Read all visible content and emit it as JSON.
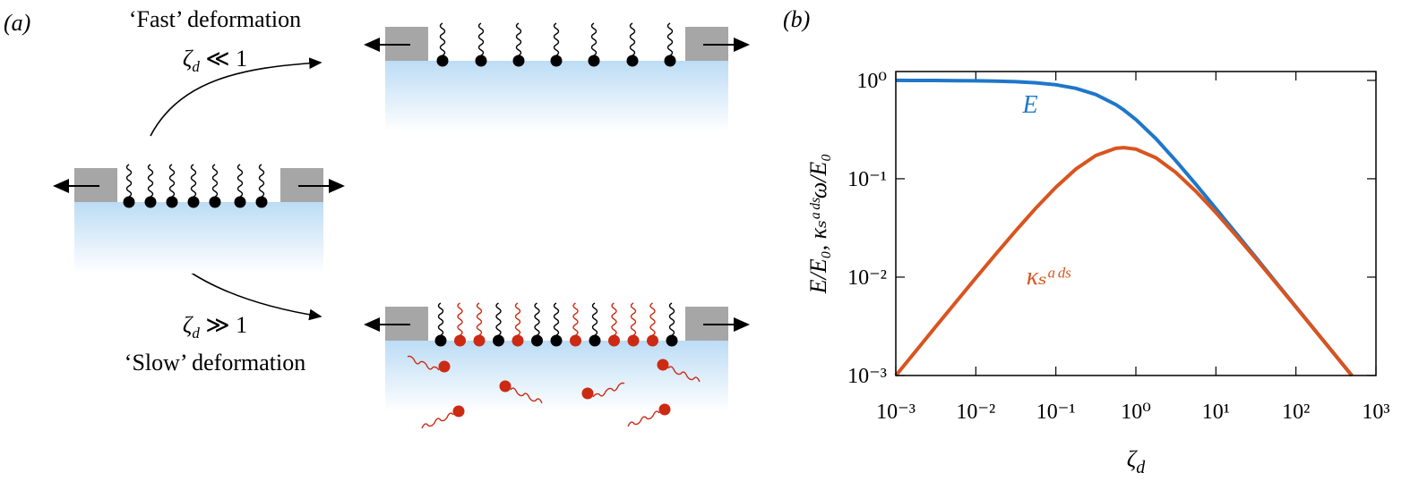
{
  "panel_a": {
    "label": "(a)",
    "fast": {
      "title": "‘Fast’ deformation",
      "symbol": "ζ",
      "subscript": "d",
      "relation": " ≪ 1"
    },
    "slow": {
      "title": "‘Slow’ deformation",
      "symbol": "ζ",
      "subscript": "d",
      "relation": " ≫ 1"
    }
  },
  "chart_data": {
    "type": "line",
    "panel_label": "(b)",
    "xlabel": {
      "symbol": "ζ",
      "subscript": "d"
    },
    "ylabel": "E/E₀,  κₛᵃᵈˢω/E₀",
    "xscale": "log",
    "yscale": "log",
    "xlim": [
      0.001,
      1000
    ],
    "ylim": [
      0.001,
      1.23
    ],
    "xticks": [
      {
        "value": 0.001,
        "label": "10⁻³"
      },
      {
        "value": 0.01,
        "label": "10⁻²"
      },
      {
        "value": 0.1,
        "label": "10⁻¹"
      },
      {
        "value": 1,
        "label": "10⁰"
      },
      {
        "value": 10,
        "label": "10¹"
      },
      {
        "value": 100,
        "label": "10²"
      },
      {
        "value": 1000,
        "label": "10³"
      }
    ],
    "yticks": [
      {
        "value": 0.001,
        "label": "10⁻³"
      },
      {
        "value": 0.01,
        "label": "10⁻²"
      },
      {
        "value": 0.1,
        "label": "10⁻¹"
      },
      {
        "value": 1,
        "label": "10⁰"
      }
    ],
    "x": [
      0.001,
      0.00178,
      0.00316,
      0.00562,
      0.01,
      0.0178,
      0.0316,
      0.0562,
      0.1,
      0.178,
      0.316,
      0.562,
      0.707,
      1,
      1.78,
      3.16,
      5.62,
      10,
      17.8,
      31.6,
      56.2,
      100,
      178,
      316,
      500
    ],
    "series": [
      {
        "name": "E",
        "color": "#1f77c8",
        "values": [
          0.999,
          0.9982,
          0.9968,
          0.9944,
          0.99,
          0.9822,
          0.9685,
          0.9441,
          0.9016,
          0.83,
          0.7185,
          0.5668,
          0.5,
          0.4,
          0.2551,
          0.1524,
          0.08779,
          0.04977,
          0.02805,
          0.01582,
          0.008895,
          0.005,
          0.002809,
          0.001582,
          0.001
        ]
      },
      {
        "name": "κₛᵃᵈˢ",
        "color": "#d9541e",
        "values": [
          0.000998,
          0.001774,
          0.00314,
          0.005557,
          0.009802,
          0.01718,
          0.02967,
          0.05024,
          0.08197,
          0.1254,
          0.1725,
          0.2039,
          0.2071,
          0.2,
          0.1634,
          0.1158,
          0.07453,
          0.04525,
          0.02656,
          0.01533,
          0.00874,
          0.00495,
          0.002793,
          0.001577,
          0.000998
        ]
      }
    ]
  }
}
